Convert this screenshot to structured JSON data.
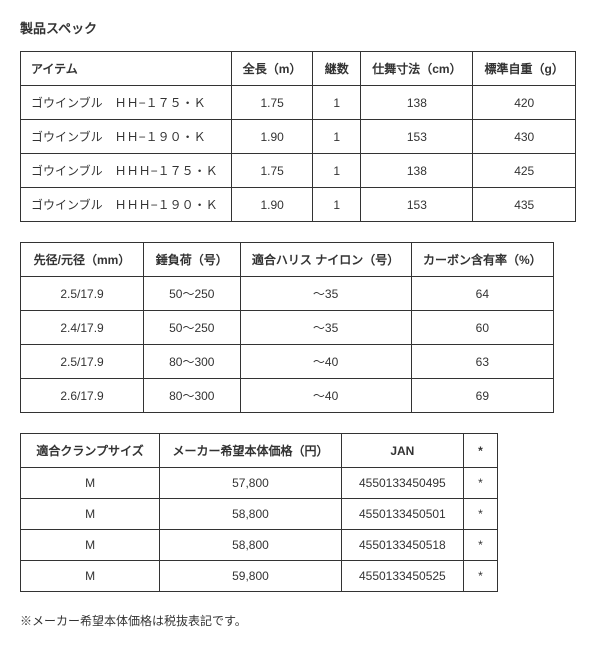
{
  "title": "製品スペック",
  "table1": {
    "headers": [
      "アイテム",
      "全長（m）",
      "継数",
      "仕舞寸法（cm）",
      "標準自重（g）"
    ],
    "rows": [
      [
        "ゴウインブル　ＨＨ−１７５・Ｋ",
        "1.75",
        "1",
        "138",
        "420"
      ],
      [
        "ゴウインブル　ＨＨ−１９０・Ｋ",
        "1.90",
        "1",
        "153",
        "430"
      ],
      [
        "ゴウインブル　ＨＨＨ−１７５・Ｋ",
        "1.75",
        "1",
        "138",
        "425"
      ],
      [
        "ゴウインブル　ＨＨＨ−１９０・Ｋ",
        "1.90",
        "1",
        "153",
        "435"
      ]
    ]
  },
  "table2": {
    "headers": [
      "先径/元径（mm）",
      "錘負荷（号）",
      "適合ハリス ナイロン（号）",
      "カーボン含有率（%）"
    ],
    "rows": [
      [
        "2.5/17.9",
        "50〜250",
        "〜35",
        "64"
      ],
      [
        "2.4/17.9",
        "50〜250",
        "〜35",
        "60"
      ],
      [
        "2.5/17.9",
        "80〜300",
        "〜40",
        "63"
      ],
      [
        "2.6/17.9",
        "80〜300",
        "〜40",
        "69"
      ]
    ]
  },
  "table3": {
    "headers": [
      "適合クランプサイズ",
      "メーカー希望本体価格（円）",
      "JAN",
      "*"
    ],
    "rows": [
      [
        "M",
        "57,800",
        "4550133450495",
        "*"
      ],
      [
        "M",
        "58,800",
        "4550133450501",
        "*"
      ],
      [
        "M",
        "58,800",
        "4550133450518",
        "*"
      ],
      [
        "M",
        "59,800",
        "4550133450525",
        "*"
      ]
    ]
  },
  "note": "※メーカー希望本体価格は税抜表記です。"
}
